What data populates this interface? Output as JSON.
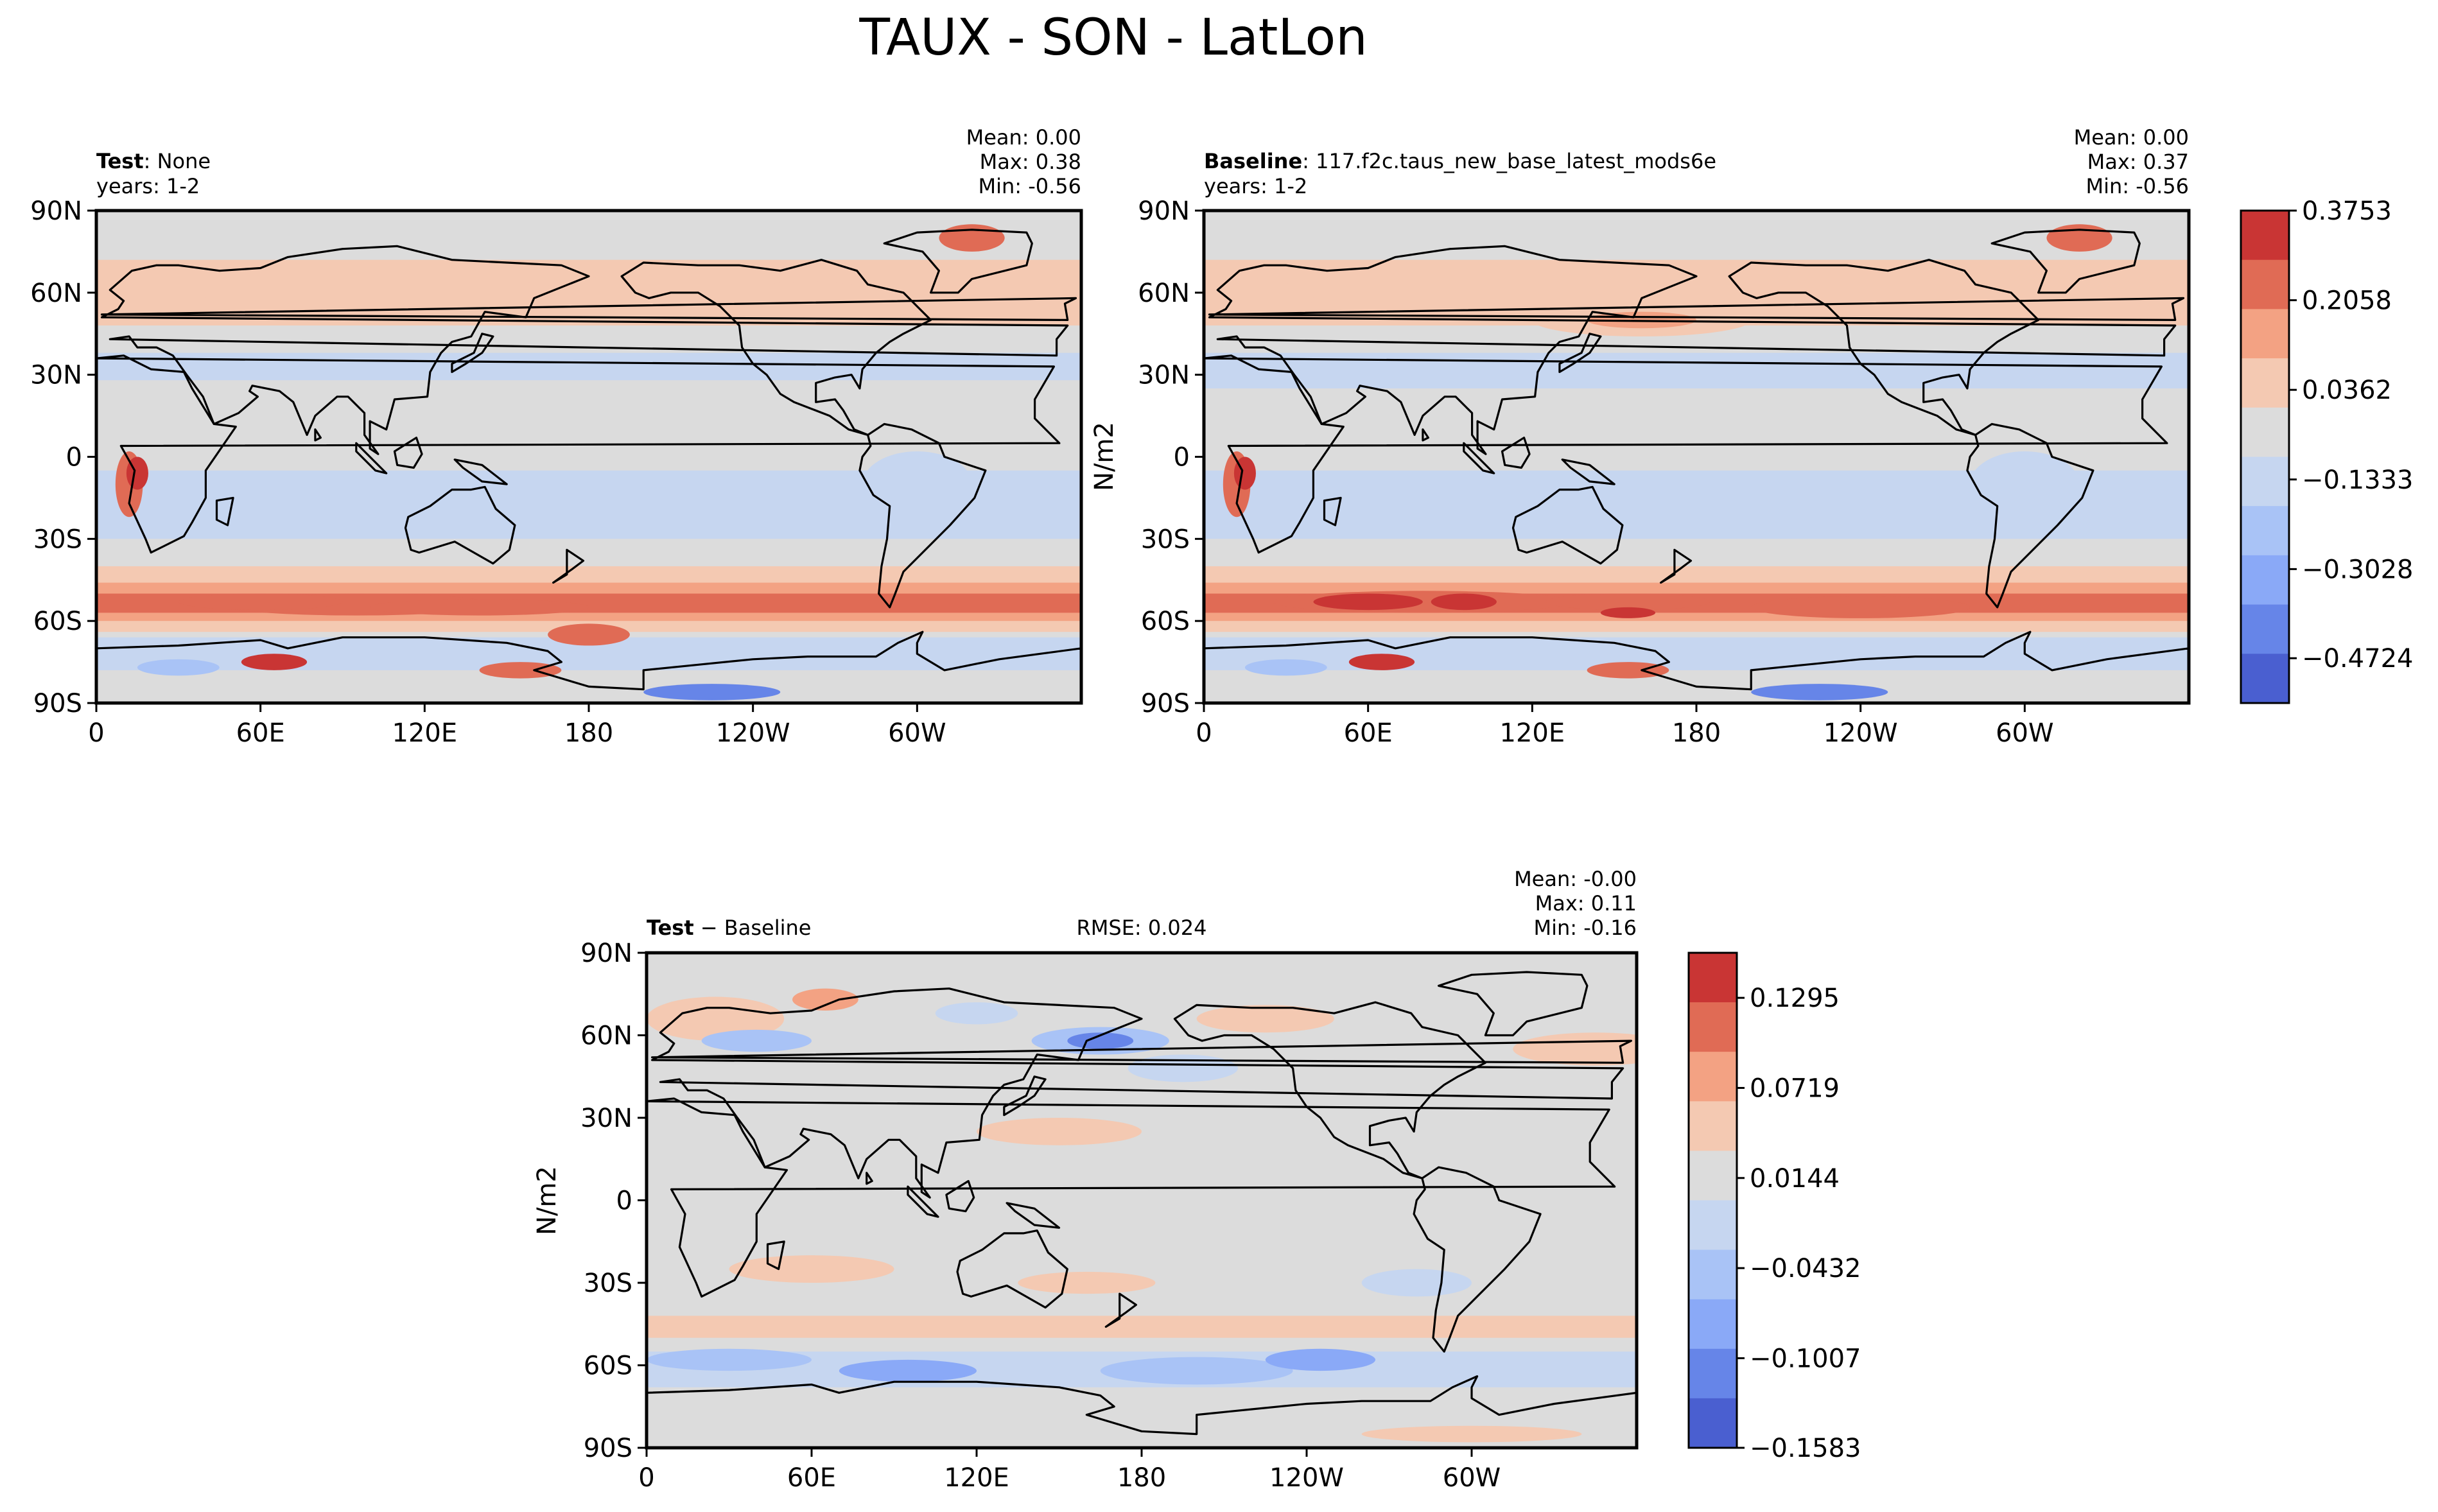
{
  "figure": {
    "title": "TAUX - SON - LatLon"
  },
  "chart_data": [
    {
      "type": "heatmap",
      "panel": "test",
      "title_bold": "Test",
      "title_rest": ": None",
      "years": "years: 1-2",
      "stats": {
        "mean": "Mean:  0.00",
        "max": "Max:  0.38",
        "min": "Min: -0.56"
      },
      "xticks": [
        "0",
        "60E",
        "120E",
        "180",
        "120W",
        "60W"
      ],
      "yticks": [
        "90N",
        "60N",
        "30N",
        "0",
        "30S",
        "60S",
        "90S"
      ],
      "ylabel": "",
      "xlim": [
        0,
        360
      ],
      "ylim": [
        -90,
        90
      ],
      "value_range": [
        -0.56,
        0.38
      ],
      "colorbar": "shared-with-baseline",
      "zonal_pattern_lat_values": [
        [
          75,
          0.1
        ],
        [
          55,
          0.18
        ],
        [
          40,
          0.08
        ],
        [
          25,
          -0.05
        ],
        [
          10,
          -0.1
        ],
        [
          -10,
          -0.15
        ],
        [
          -25,
          -0.08
        ],
        [
          -40,
          0.12
        ],
        [
          -52,
          0.28
        ],
        [
          -62,
          0.1
        ],
        [
          -75,
          -0.05
        ]
      ]
    },
    {
      "type": "heatmap",
      "panel": "baseline",
      "title_bold": "Baseline",
      "title_rest": ": 117.f2c.taus_new_base_latest_mods6e",
      "years": "years: 1-2",
      "stats": {
        "mean": "Mean:  0.00",
        "max": "Max:  0.37",
        "min": "Min: -0.56"
      },
      "xticks": [
        "0",
        "60E",
        "120E",
        "180",
        "120W",
        "60W"
      ],
      "yticks": [
        "90N",
        "60N",
        "30N",
        "0",
        "30S",
        "60S",
        "90S"
      ],
      "ylabel": "N/m2",
      "xlim": [
        0,
        360
      ],
      "ylim": [
        -90,
        90
      ],
      "value_range": [
        -0.56,
        0.37
      ],
      "colorbar": {
        "tick_labels": [
          "0.3753",
          "0.2058",
          "0.0362",
          "−0.1333",
          "−0.3028",
          "−0.4724"
        ],
        "colors": [
          "#c93534",
          "#e06b55",
          "#f3a283",
          "#f4c9b2",
          "#dcdcdc",
          "#c6d6f0",
          "#a9c3f6",
          "#8aa9f7",
          "#6685e8",
          "#4a5fd0"
        ]
      }
    },
    {
      "type": "heatmap",
      "panel": "difference",
      "title_bold": "Test",
      "title_rest": " − Baseline",
      "rmse": "RMSE: 0.024",
      "stats": {
        "mean": "Mean: -0.00",
        "max": "Max:  0.11",
        "min": "Min: -0.16"
      },
      "xticks": [
        "0",
        "60E",
        "120E",
        "180",
        "120W",
        "60W"
      ],
      "yticks": [
        "90N",
        "60N",
        "30N",
        "0",
        "30S",
        "60S",
        "90S"
      ],
      "ylabel": "N/m2",
      "xlim": [
        0,
        360
      ],
      "ylim": [
        -90,
        90
      ],
      "value_range": [
        -0.16,
        0.11
      ],
      "colorbar": {
        "tick_labels": [
          "0.1295",
          "0.0719",
          "0.0144",
          "−0.0432",
          "−0.1007",
          "−0.1583"
        ],
        "colors": [
          "#c93534",
          "#e06b55",
          "#f3a283",
          "#f4c9b2",
          "#dcdcdc",
          "#c6d6f0",
          "#a9c3f6",
          "#8aa9f7",
          "#6685e8",
          "#4a5fd0"
        ]
      }
    }
  ]
}
